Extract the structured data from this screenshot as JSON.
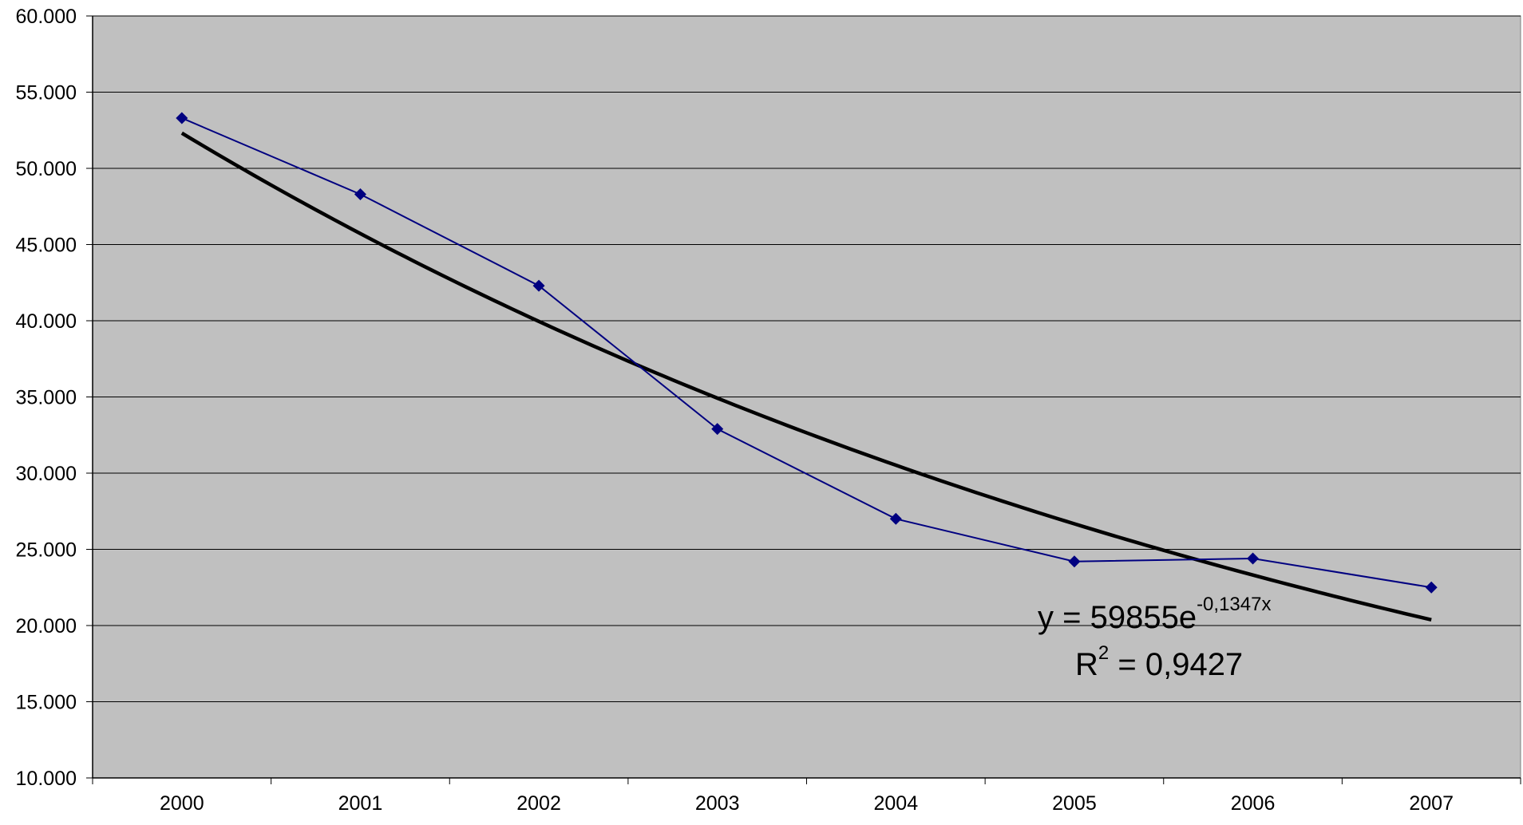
{
  "chart_data": {
    "type": "line",
    "title": "",
    "xlabel": "",
    "ylabel": "",
    "categories": [
      "2000",
      "2001",
      "2002",
      "2003",
      "2004",
      "2005",
      "2006",
      "2007"
    ],
    "ylim": [
      10000,
      60000
    ],
    "ytick_values": [
      10000,
      15000,
      20000,
      25000,
      30000,
      35000,
      40000,
      45000,
      50000,
      55000,
      60000
    ],
    "ytick_labels": [
      "10.000",
      "15.000",
      "20.000",
      "25.000",
      "30.000",
      "35.000",
      "40.000",
      "45.000",
      "50.000",
      "55.000",
      "60.000"
    ],
    "grid": true,
    "plot_background": "#C0C0C0",
    "series": [
      {
        "values": [
          53300,
          48300,
          42300,
          32900,
          27000,
          24200,
          24400,
          22500
        ],
        "color": "#000080",
        "marker": "diamond"
      }
    ],
    "trendline": {
      "type": "exponential",
      "coefficient": 59855,
      "rate": -0.1347,
      "color": "#000000",
      "equation_prefix": "y = 59855e",
      "equation_exponent": "-0,1347x",
      "r2_prefix": "R",
      "r2_superscript": "2",
      "r2_suffix": " = 0,9427"
    }
  }
}
